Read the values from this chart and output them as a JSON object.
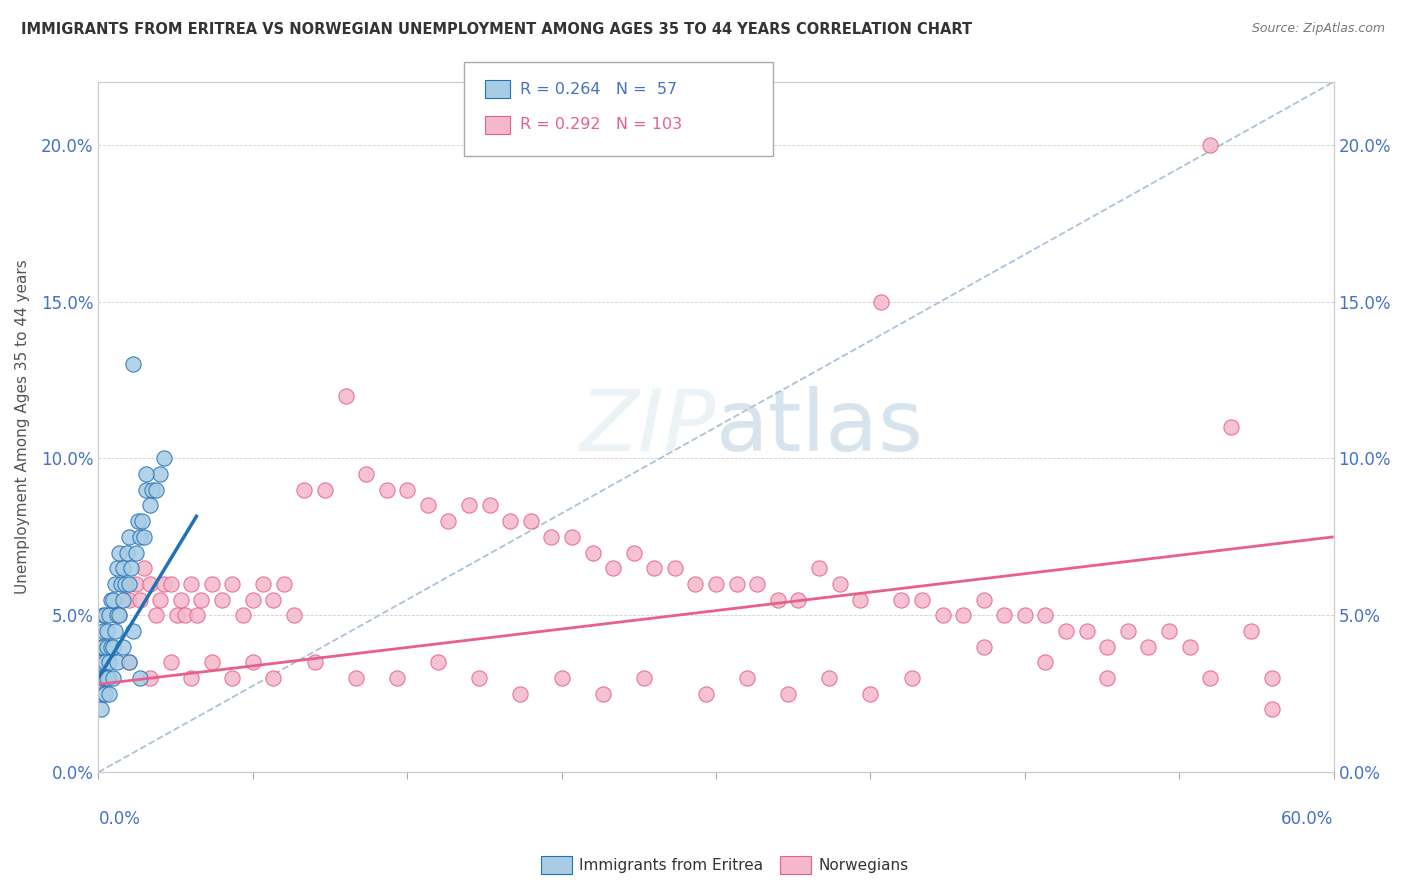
{
  "title": "IMMIGRANTS FROM ERITREA VS NORWEGIAN UNEMPLOYMENT AMONG AGES 35 TO 44 YEARS CORRELATION CHART",
  "source": "Source: ZipAtlas.com",
  "ylabel": "Unemployment Among Ages 35 to 44 years",
  "legend_label1": "Immigrants from Eritrea",
  "legend_label2": "Norwegians",
  "r1": "0.264",
  "n1": "57",
  "r2": "0.292",
  "n2": "103",
  "xlim": [
    0.0,
    0.6
  ],
  "ylim": [
    0.0,
    0.22
  ],
  "yticks": [
    0.0,
    0.05,
    0.1,
    0.15,
    0.2
  ],
  "ytick_labels": [
    "0.0%",
    "5.0%",
    "10.0%",
    "15.0%",
    "20.0%"
  ],
  "color_blue": "#a8cce4",
  "color_pink": "#f4b8cb",
  "color_blue_dark": "#2171b5",
  "color_pink_dark": "#e8608a",
  "background_color": "#ffffff",
  "diag_color": "#a0bcd8",
  "blue_trend_start_x": 0.0,
  "blue_trend_end_x": 0.048,
  "pink_trend_start_y": 0.028,
  "pink_trend_end_y": 0.075,
  "blue_scatter_x": [
    0.001,
    0.001,
    0.001,
    0.002,
    0.002,
    0.002,
    0.002,
    0.003,
    0.003,
    0.003,
    0.004,
    0.004,
    0.005,
    0.005,
    0.005,
    0.006,
    0.006,
    0.007,
    0.007,
    0.008,
    0.008,
    0.009,
    0.009,
    0.01,
    0.01,
    0.011,
    0.012,
    0.012,
    0.013,
    0.014,
    0.015,
    0.015,
    0.016,
    0.017,
    0.018,
    0.019,
    0.02,
    0.021,
    0.022,
    0.023,
    0.025,
    0.026,
    0.028,
    0.03,
    0.032,
    0.001,
    0.002,
    0.003,
    0.004,
    0.005,
    0.007,
    0.009,
    0.012,
    0.015,
    0.017,
    0.02,
    0.023
  ],
  "blue_scatter_y": [
    0.03,
    0.035,
    0.04,
    0.03,
    0.04,
    0.045,
    0.05,
    0.03,
    0.035,
    0.05,
    0.04,
    0.045,
    0.03,
    0.035,
    0.05,
    0.04,
    0.055,
    0.04,
    0.055,
    0.045,
    0.06,
    0.05,
    0.065,
    0.05,
    0.07,
    0.06,
    0.055,
    0.065,
    0.06,
    0.07,
    0.06,
    0.075,
    0.065,
    0.13,
    0.07,
    0.08,
    0.075,
    0.08,
    0.075,
    0.09,
    0.085,
    0.09,
    0.09,
    0.095,
    0.1,
    0.02,
    0.025,
    0.025,
    0.03,
    0.025,
    0.03,
    0.035,
    0.04,
    0.035,
    0.045,
    0.03,
    0.095
  ],
  "pink_scatter_x": [
    0.005,
    0.01,
    0.012,
    0.015,
    0.018,
    0.02,
    0.022,
    0.025,
    0.028,
    0.03,
    0.032,
    0.035,
    0.038,
    0.04,
    0.042,
    0.045,
    0.048,
    0.05,
    0.055,
    0.06,
    0.065,
    0.07,
    0.075,
    0.08,
    0.085,
    0.09,
    0.095,
    0.1,
    0.11,
    0.12,
    0.13,
    0.14,
    0.15,
    0.16,
    0.17,
    0.18,
    0.19,
    0.2,
    0.21,
    0.22,
    0.23,
    0.24,
    0.25,
    0.26,
    0.27,
    0.28,
    0.29,
    0.3,
    0.31,
    0.32,
    0.33,
    0.34,
    0.35,
    0.36,
    0.37,
    0.38,
    0.39,
    0.4,
    0.41,
    0.42,
    0.43,
    0.44,
    0.45,
    0.46,
    0.47,
    0.48,
    0.49,
    0.5,
    0.51,
    0.52,
    0.53,
    0.54,
    0.55,
    0.56,
    0.57,
    0.015,
    0.025,
    0.035,
    0.045,
    0.055,
    0.065,
    0.075,
    0.085,
    0.105,
    0.125,
    0.145,
    0.165,
    0.185,
    0.205,
    0.225,
    0.245,
    0.265,
    0.295,
    0.315,
    0.335,
    0.355,
    0.375,
    0.395,
    0.43,
    0.46,
    0.49,
    0.54,
    0.57
  ],
  "pink_scatter_y": [
    0.04,
    0.05,
    0.06,
    0.055,
    0.06,
    0.055,
    0.065,
    0.06,
    0.05,
    0.055,
    0.06,
    0.06,
    0.05,
    0.055,
    0.05,
    0.06,
    0.05,
    0.055,
    0.06,
    0.055,
    0.06,
    0.05,
    0.055,
    0.06,
    0.055,
    0.06,
    0.05,
    0.09,
    0.09,
    0.12,
    0.095,
    0.09,
    0.09,
    0.085,
    0.08,
    0.085,
    0.085,
    0.08,
    0.08,
    0.075,
    0.075,
    0.07,
    0.065,
    0.07,
    0.065,
    0.065,
    0.06,
    0.06,
    0.06,
    0.06,
    0.055,
    0.055,
    0.065,
    0.06,
    0.055,
    0.15,
    0.055,
    0.055,
    0.05,
    0.05,
    0.055,
    0.05,
    0.05,
    0.05,
    0.045,
    0.045,
    0.04,
    0.045,
    0.04,
    0.045,
    0.04,
    0.2,
    0.11,
    0.045,
    0.03,
    0.035,
    0.03,
    0.035,
    0.03,
    0.035,
    0.03,
    0.035,
    0.03,
    0.035,
    0.03,
    0.03,
    0.035,
    0.03,
    0.025,
    0.03,
    0.025,
    0.03,
    0.025,
    0.03,
    0.025,
    0.03,
    0.025,
    0.03,
    0.04,
    0.035,
    0.03,
    0.03,
    0.02
  ]
}
